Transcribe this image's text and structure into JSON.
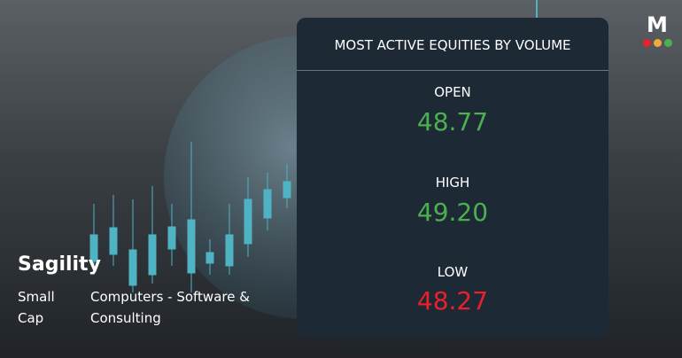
{
  "company": {
    "name": "Sagility",
    "cap": "Small Cap",
    "sector": "Computers - Software & Consulting"
  },
  "logo": "M",
  "card": {
    "title": "MOST ACTIVE EQUITIES BY VOLUME",
    "items": [
      {
        "label": "OPEN",
        "value": "48.77"
      },
      {
        "label": "HIGH",
        "value": "49.20"
      },
      {
        "label": "LOW",
        "value": "48.27"
      }
    ]
  }
}
